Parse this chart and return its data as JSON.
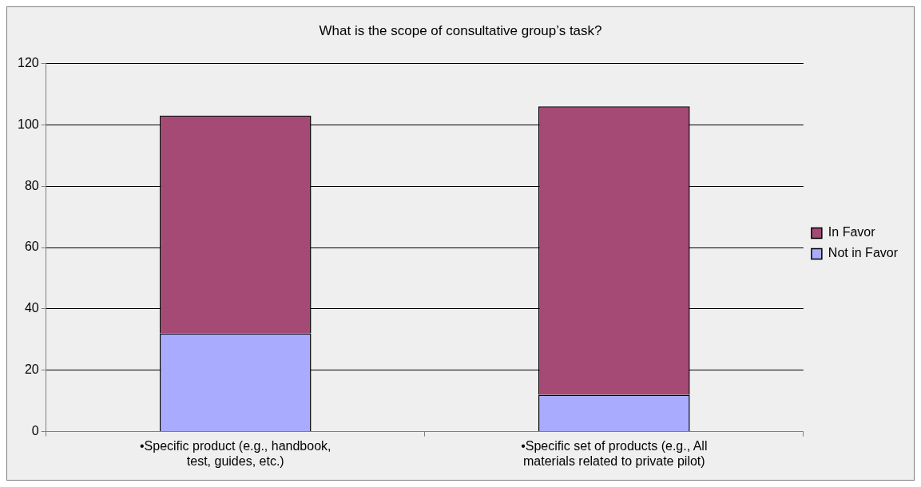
{
  "chart_data": {
    "type": "bar",
    "title": "What is the scope of consultative group’s task?",
    "categories": [
      "•Specific product (e.g., handbook, test, guides, etc.)",
      "•Specific set of products (e.g., All materials related to private pilot)"
    ],
    "stacked": true,
    "series": [
      {
        "name": "Not in Favor",
        "color": "#a9abff",
        "values": [
          32,
          12
        ]
      },
      {
        "name": "In Favor",
        "color": "#a44a74",
        "values": [
          71,
          94
        ]
      }
    ],
    "ylim": [
      0,
      120
    ],
    "yticks": [
      0,
      20,
      40,
      60,
      80,
      100,
      120
    ],
    "grid": "y",
    "legend": "right"
  }
}
